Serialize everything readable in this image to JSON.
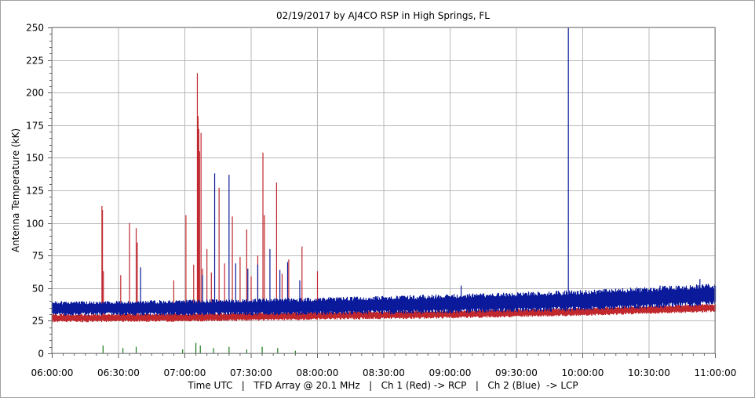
{
  "chart_data": {
    "type": "line",
    "title": "02/19/2017  by  AJ4CO RSP  in  High Springs, FL",
    "ylabel": "Antenna Temperature (kK)",
    "xlabel": "Time UTC   |   TFD Array @ 20.1 MHz   |   Ch 1 (Red) -> RCP   |   Ch 2 (Blue)  -> LCP",
    "xlim": [
      "06:00:00",
      "11:00:00"
    ],
    "ylim": [
      0,
      250
    ],
    "grid": true,
    "x_ticks": [
      "06:00:00",
      "06:30:00",
      "07:00:00",
      "07:30:00",
      "08:00:00",
      "08:30:00",
      "09:00:00",
      "09:30:00",
      "10:00:00",
      "10:30:00",
      "11:00:00"
    ],
    "y_ticks": [
      "0",
      "25",
      "50",
      "75",
      "100",
      "125",
      "150",
      "175",
      "200",
      "225",
      "250"
    ],
    "colors": {
      "ch1": "#c0282e",
      "ch2": "#0a1a9a",
      "diff": "#1a7a1a",
      "grid": "#b8b8b8"
    },
    "series": [
      {
        "name": "Ch 1 (Red) -> RCP",
        "baseline": [
          [
            "06:00:00",
            27
          ],
          [
            "07:00:00",
            27.5
          ],
          [
            "08:00:00",
            29
          ],
          [
            "09:00:00",
            30
          ],
          [
            "10:00:00",
            32
          ],
          [
            "11:00:00",
            35
          ]
        ],
        "spikes": [
          [
            "06:22:30",
            113
          ],
          [
            "06:22:45",
            110
          ],
          [
            "06:23:10",
            63
          ],
          [
            "06:31:00",
            60
          ],
          [
            "06:35:00",
            100
          ],
          [
            "06:38:00",
            96
          ],
          [
            "06:38:30",
            85
          ],
          [
            "06:55:00",
            56
          ],
          [
            "07:00:30",
            106
          ],
          [
            "07:04:00",
            68
          ],
          [
            "07:05:40",
            215
          ],
          [
            "07:06:00",
            182
          ],
          [
            "07:06:20",
            172
          ],
          [
            "07:06:40",
            155
          ],
          [
            "07:07:20",
            169
          ],
          [
            "07:08:00",
            65
          ],
          [
            "07:10:00",
            80
          ],
          [
            "07:12:00",
            62
          ],
          [
            "07:15:30",
            127
          ],
          [
            "07:18:00",
            69
          ],
          [
            "07:21:30",
            105
          ],
          [
            "07:25:00",
            74
          ],
          [
            "07:28:00",
            95
          ],
          [
            "07:30:00",
            59
          ],
          [
            "07:33:00",
            75
          ],
          [
            "07:35:20",
            154
          ],
          [
            "07:36:00",
            106
          ],
          [
            "07:41:30",
            131
          ],
          [
            "07:44:00",
            61
          ],
          [
            "07:47:00",
            72
          ],
          [
            "07:53:00",
            82
          ],
          [
            "08:00:00",
            63
          ]
        ]
      },
      {
        "name": "Ch 2 (Blue)  -> LCP",
        "baseline": [
          [
            "06:00:00",
            34.5
          ],
          [
            "07:00:00",
            35
          ],
          [
            "08:00:00",
            36
          ],
          [
            "09:00:00",
            38
          ],
          [
            "10:00:00",
            40.5
          ],
          [
            "11:00:00",
            45
          ]
        ],
        "spikes": [
          [
            "06:40:00",
            66
          ],
          [
            "07:08:00",
            60
          ],
          [
            "07:13:30",
            138
          ],
          [
            "07:20:00",
            137
          ],
          [
            "07:23:00",
            69
          ],
          [
            "07:28:30",
            65
          ],
          [
            "07:33:00",
            68
          ],
          [
            "07:38:30",
            80
          ],
          [
            "07:43:00",
            64
          ],
          [
            "07:46:30",
            70
          ],
          [
            "07:52:00",
            56
          ],
          [
            "09:05:00",
            52
          ],
          [
            "09:53:30",
            250
          ],
          [
            "10:35:00",
            52
          ],
          [
            "10:53:00",
            57
          ]
        ]
      },
      {
        "name": "difference",
        "baseline": [
          [
            "06:00:00",
            0
          ],
          [
            "11:00:00",
            0
          ]
        ],
        "spikes": [
          [
            "06:23:00",
            6
          ],
          [
            "06:32:00",
            4
          ],
          [
            "06:38:00",
            5
          ],
          [
            "06:59:00",
            3
          ],
          [
            "07:05:00",
            8
          ],
          [
            "07:07:00",
            6
          ],
          [
            "07:13:00",
            4
          ],
          [
            "07:20:00",
            5
          ],
          [
            "07:28:00",
            3
          ],
          [
            "07:35:00",
            5
          ],
          [
            "07:42:00",
            4
          ],
          [
            "07:50:00",
            2
          ]
        ]
      }
    ]
  }
}
